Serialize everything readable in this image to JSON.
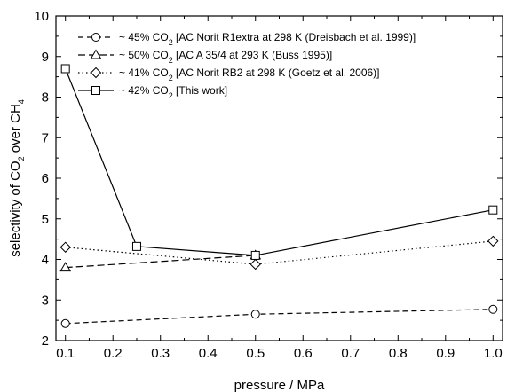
{
  "chart_data": {
    "type": "line",
    "xlabel": "pressure / MPa",
    "ylabel": {
      "parts": [
        {
          "text": "selectivity of CO",
          "sub": false
        },
        {
          "text": "2",
          "sub": true
        },
        {
          "text": " over CH",
          "sub": false
        },
        {
          "text": "4",
          "sub": true
        }
      ]
    },
    "xlim": [
      0.08,
      1.02
    ],
    "ylim": [
      2,
      10
    ],
    "xticks": [
      "0.1",
      "0.2",
      "0.3",
      "0.4",
      "0.5",
      "0.6",
      "0.7",
      "0.8",
      "0.9",
      "1.0"
    ],
    "yticks": [
      "2",
      "3",
      "4",
      "5",
      "6",
      "7",
      "8",
      "9",
      "10"
    ],
    "grid": false,
    "legend_position": "top-left",
    "series": [
      {
        "name": "~ 45% CO2 [AC Norit R1extra at 298 K (Dreisbach et al. 1999)]",
        "legend_parts": [
          {
            "text": "~ 45% CO",
            "sub": false
          },
          {
            "text": "2",
            "sub": true
          },
          {
            "text": " [AC Norit R1extra at 298 K (Dreisbach et al. 1999)]",
            "sub": false
          }
        ],
        "marker": "circle",
        "line_style": "dashed",
        "x": [
          0.1,
          0.5,
          1.0
        ],
        "y": [
          2.42,
          2.65,
          2.77
        ]
      },
      {
        "name": "~ 50% CO2 [AC A 35/4 at 293 K (Buss 1995)]",
        "legend_parts": [
          {
            "text": "~ 50% CO",
            "sub": false
          },
          {
            "text": "2",
            "sub": true
          },
          {
            "text": " [AC A 35/4 at 293 K (Buss 1995)]",
            "sub": false
          }
        ],
        "marker": "triangle",
        "line_style": "longdash",
        "x": [
          0.1,
          0.5
        ],
        "y": [
          3.8,
          4.1
        ]
      },
      {
        "name": "~ 41% CO2 [AC Norit RB2 at 298 K (Goetz et al. 2006)]",
        "legend_parts": [
          {
            "text": "~ 41% CO",
            "sub": false
          },
          {
            "text": "2",
            "sub": true
          },
          {
            "text": " [AC Norit RB2 at 298 K (Goetz et al. 2006)]",
            "sub": false
          }
        ],
        "marker": "diamond",
        "line_style": "dotted",
        "x": [
          0.1,
          0.5,
          1.0
        ],
        "y": [
          4.3,
          3.88,
          4.45
        ]
      },
      {
        "name": "~ 42% CO2 [This work]",
        "legend_parts": [
          {
            "text": "~ 42% CO",
            "sub": false
          },
          {
            "text": "2",
            "sub": true
          },
          {
            "text": " [This work]",
            "sub": false
          }
        ],
        "marker": "square",
        "line_style": "solid",
        "x": [
          0.1,
          0.25,
          0.5,
          1.0
        ],
        "y": [
          8.7,
          4.32,
          4.1,
          5.22
        ]
      }
    ]
  }
}
